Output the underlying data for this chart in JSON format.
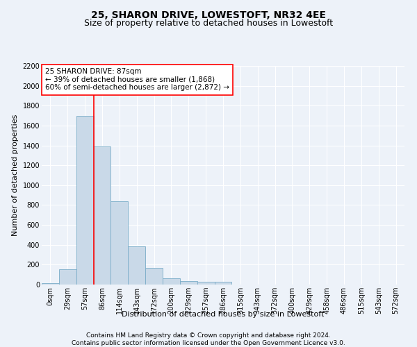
{
  "title": "25, SHARON DRIVE, LOWESTOFT, NR32 4EE",
  "subtitle": "Size of property relative to detached houses in Lowestoft",
  "xlabel": "Distribution of detached houses by size in Lowestoft",
  "ylabel": "Number of detached properties",
  "bar_labels": [
    "0sqm",
    "29sqm",
    "57sqm",
    "86sqm",
    "114sqm",
    "143sqm",
    "172sqm",
    "200sqm",
    "229sqm",
    "257sqm",
    "286sqm",
    "315sqm",
    "343sqm",
    "372sqm",
    "400sqm",
    "429sqm",
    "458sqm",
    "486sqm",
    "515sqm",
    "543sqm",
    "572sqm"
  ],
  "bar_values": [
    15,
    155,
    1700,
    1390,
    835,
    385,
    165,
    65,
    38,
    28,
    28,
    0,
    0,
    0,
    0,
    0,
    0,
    0,
    0,
    0,
    0
  ],
  "bar_color": "#c9d9e8",
  "bar_edge_color": "#7aacc8",
  "vline_x_index": 2,
  "vline_color": "red",
  "annotation_text": "25 SHARON DRIVE: 87sqm\n← 39% of detached houses are smaller (1,868)\n60% of semi-detached houses are larger (2,872) →",
  "annotation_box_color": "white",
  "annotation_box_edge": "red",
  "ylim": [
    0,
    2200
  ],
  "yticks": [
    0,
    200,
    400,
    600,
    800,
    1000,
    1200,
    1400,
    1600,
    1800,
    2000,
    2200
  ],
  "footer_line1": "Contains HM Land Registry data © Crown copyright and database right 2024.",
  "footer_line2": "Contains public sector information licensed under the Open Government Licence v3.0.",
  "bg_color": "#edf2f9",
  "plot_bg_color": "#edf2f9",
  "grid_color": "white",
  "title_fontsize": 10,
  "subtitle_fontsize": 9,
  "axis_label_fontsize": 8,
  "tick_fontsize": 7,
  "annotation_fontsize": 7.5,
  "footer_fontsize": 6.5
}
